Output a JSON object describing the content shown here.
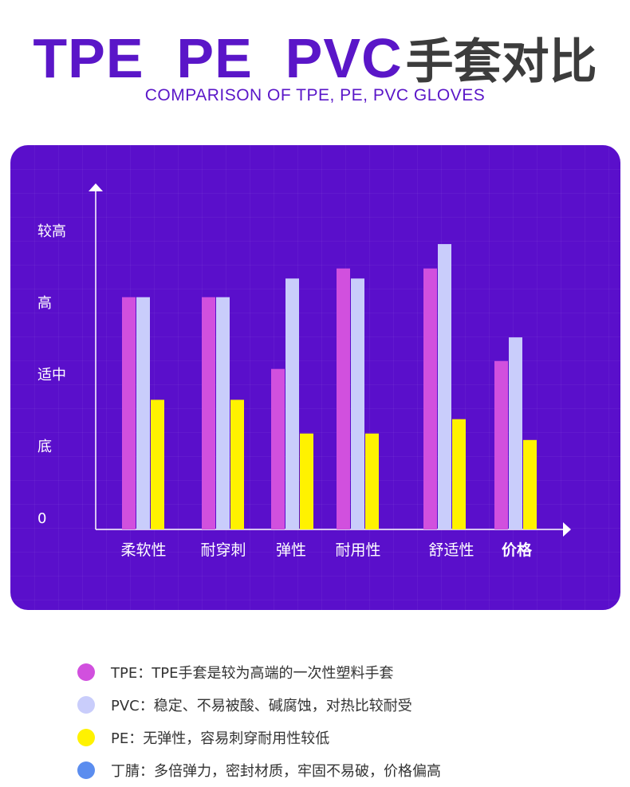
{
  "header": {
    "title_en": "TPE  PE  PVC",
    "title_cn": "手套对比",
    "subtitle": "COMPARISON OF TPE, PE, PVC GLOVES"
  },
  "colors": {
    "panel_bg": "#5a0fcb",
    "tpe": "#d150de",
    "pvc": "#c9cdfb",
    "pe": "#fff200",
    "nitrile": "#5b8def"
  },
  "chart_data": {
    "type": "bar",
    "categories": [
      "柔软性",
      "耐穿刺",
      "弹性",
      "耐用性",
      "舒适性",
      "价格"
    ],
    "y_tick_labels": [
      "0",
      "底",
      "适中",
      "高",
      "较高"
    ],
    "y_tick_values": [
      0,
      1,
      2,
      3,
      4
    ],
    "ylim": [
      0,
      4.5
    ],
    "series": [
      {
        "name": "TPE",
        "color": "#d150de",
        "values": [
          3.07,
          3.07,
          2.07,
          3.47,
          3.47,
          2.18
        ]
      },
      {
        "name": "PVC",
        "color": "#c9cdfb",
        "values": [
          3.07,
          3.07,
          3.33,
          3.33,
          3.81,
          2.51
        ]
      },
      {
        "name": "PE",
        "color": "#fff200",
        "values": [
          1.64,
          1.64,
          1.17,
          1.17,
          1.37,
          1.08
        ]
      }
    ],
    "grid": false,
    "legend": "bottom"
  },
  "legend": [
    {
      "color": "#d150de",
      "text": "TPE：TPE手套是较为高端的一次性塑料手套"
    },
    {
      "color": "#c9cdfb",
      "text": "PVC：稳定、不易被酸、碱腐蚀，对热比较耐受"
    },
    {
      "color": "#fff200",
      "text": "PE：无弹性，容易刺穿耐用性较低"
    },
    {
      "color": "#5b8def",
      "text": "丁腈：多倍弹力，密封材质，牢固不易破，价格偏高"
    }
  ]
}
